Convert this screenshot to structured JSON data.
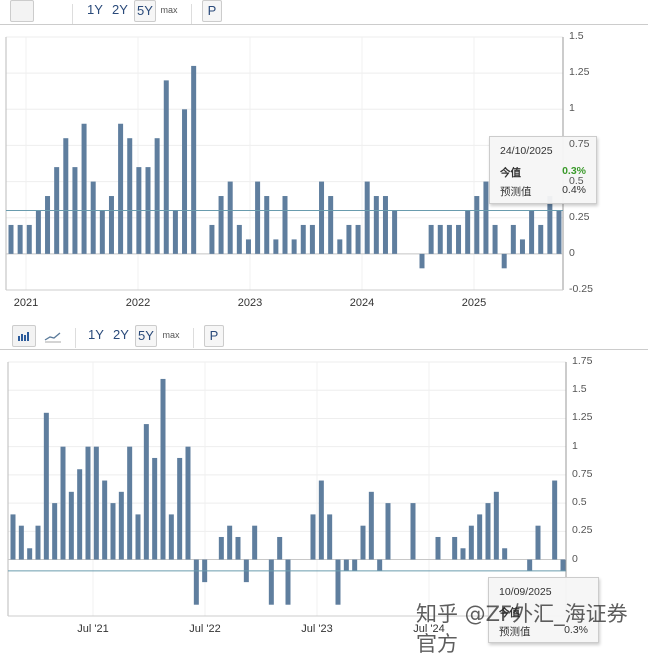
{
  "toolbar1": {
    "ranges": [
      "1Y",
      "2Y",
      "5Y",
      "max"
    ],
    "selected": "5Y",
    "p_label": "P"
  },
  "toolbar2": {
    "chart_type_icons": [
      "bar-chart-icon",
      "line-chart-icon"
    ],
    "ranges": [
      "1Y",
      "2Y",
      "5Y",
      "max"
    ],
    "selected": "5Y",
    "p_label": "P"
  },
  "colors": {
    "bar": "#5f7e9e",
    "forecast_line": "#6a9cae",
    "actual_green": "#3a9a2a"
  },
  "tooltip1": {
    "date": "24/10/2025",
    "actual_label": "今值",
    "actual_value": "0.3%",
    "forecast_label": "预测值",
    "forecast_value": "0.4%"
  },
  "tooltip2": {
    "date": "10/09/2025",
    "actual_label": "今值",
    "actual_value": "",
    "forecast_label": "预测值",
    "forecast_value": "0.3%"
  },
  "watermark": "知乎 @ZF外汇_海证券官方",
  "chart_data": [
    {
      "type": "bar",
      "title": "",
      "xlabel": "",
      "ylabel": "",
      "ylim": [
        -0.25,
        1.5
      ],
      "yticks": [
        "1.5",
        "1.25",
        "1",
        "0.75",
        "0.5",
        "0.25",
        "0",
        "-0.25"
      ],
      "xtick_labels": [
        "2021",
        "2022",
        "2023",
        "2024",
        "2025"
      ],
      "reference_line": 0.3,
      "grid": true,
      "values": [
        0.2,
        0.2,
        0.2,
        0.3,
        0.4,
        0.6,
        0.8,
        0.6,
        0.9,
        0.5,
        0.3,
        0.4,
        0.9,
        0.8,
        0.6,
        0.6,
        0.8,
        1.2,
        0.3,
        1.0,
        1.3,
        0,
        0.2,
        0.4,
        0.5,
        0.2,
        0.1,
        0.5,
        0.4,
        0.1,
        0.4,
        0.1,
        0.2,
        0.2,
        0.5,
        0.4,
        0.1,
        0.2,
        0.2,
        0.5,
        0.4,
        0.4,
        0.3,
        0,
        0,
        -0.1,
        0.2,
        0.2,
        0.2,
        0.2,
        0.3,
        0.4,
        0.5,
        0.2,
        -0.1,
        0.2,
        0.1,
        0.3,
        0.2,
        0.4,
        0.3
      ]
    },
    {
      "type": "bar",
      "title": "",
      "xlabel": "",
      "ylabel": "",
      "ylim": [
        -0.5,
        1.75
      ],
      "yticks": [
        "1.75",
        "1.5",
        "1.25",
        "1",
        "0.75",
        "0.5",
        "0.25",
        "0"
      ],
      "xtick_labels": [
        "Jul '21",
        "Jul '22",
        "Jul '23",
        "Jul '24"
      ],
      "reference_line": -0.1,
      "grid": true,
      "values": [
        0.4,
        0.3,
        0.1,
        0.3,
        1.3,
        0.5,
        1.0,
        0.6,
        0.8,
        1.0,
        1.0,
        0.7,
        0.5,
        0.6,
        1.0,
        0.4,
        1.2,
        0.9,
        1.6,
        0.4,
        0.9,
        1.0,
        -0.4,
        -0.2,
        0,
        0.2,
        0.3,
        0.2,
        -0.2,
        0.3,
        0,
        -0.4,
        0.2,
        -0.4,
        0,
        0,
        0.4,
        0.7,
        0.4,
        -0.4,
        -0.1,
        -0.1,
        0.3,
        0.6,
        -0.1,
        0.5,
        0,
        0,
        0.5,
        0,
        0,
        0.2,
        0,
        0.2,
        0.1,
        0.3,
        0.4,
        0.5,
        0.6,
        0.1,
        0,
        0,
        -0.1,
        0.3,
        0,
        0.7,
        -0.1
      ]
    }
  ]
}
